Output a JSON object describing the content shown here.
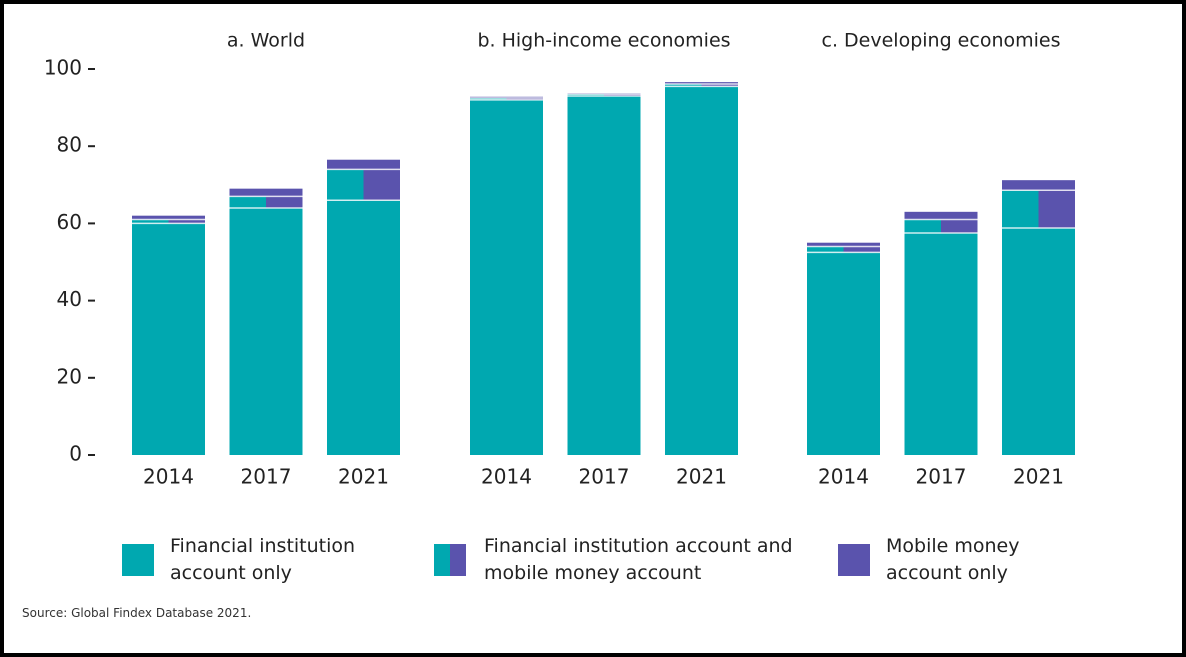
{
  "chart_data": {
    "type": "stacked_bar",
    "ylim": [
      0,
      100
    ],
    "yticks": [
      0,
      20,
      40,
      60,
      80,
      100
    ],
    "legend": [
      {
        "name": "Financial institution account only",
        "color": "#00a8b0"
      },
      {
        "name": "Financial institution account and mobile money account",
        "color": [
          "#00a8b0",
          "#5a53ad"
        ]
      },
      {
        "name": "Mobile money account only",
        "color": "#5a53ad"
      }
    ],
    "panels": [
      {
        "title": "a. World",
        "categories": [
          "2014",
          "2017",
          "2021"
        ],
        "series": [
          {
            "values": [
              60,
              64,
              66
            ]
          },
          {
            "values": [
              1,
              3,
              8
            ]
          },
          {
            "values": [
              1,
              2,
              2.5
            ]
          }
        ]
      },
      {
        "title": "b. High-income economies",
        "categories": [
          "2014",
          "2017",
          "2021"
        ],
        "series": [
          {
            "values": [
              92,
              93,
              95.5
            ]
          },
          {
            "values": [
              0.5,
              0.5,
              0.6
            ]
          },
          {
            "values": [
              0.3,
              0.2,
              0.5
            ]
          }
        ]
      },
      {
        "title": "c. Developing economies",
        "categories": [
          "2014",
          "2017",
          "2021"
        ],
        "series": [
          {
            "values": [
              52.5,
              57.5,
              58.8
            ]
          },
          {
            "values": [
              1.5,
              3.5,
              9.8
            ]
          },
          {
            "values": [
              1,
              2,
              2.6
            ]
          }
        ]
      }
    ],
    "source": "Source: Global Findex Database 2021."
  }
}
